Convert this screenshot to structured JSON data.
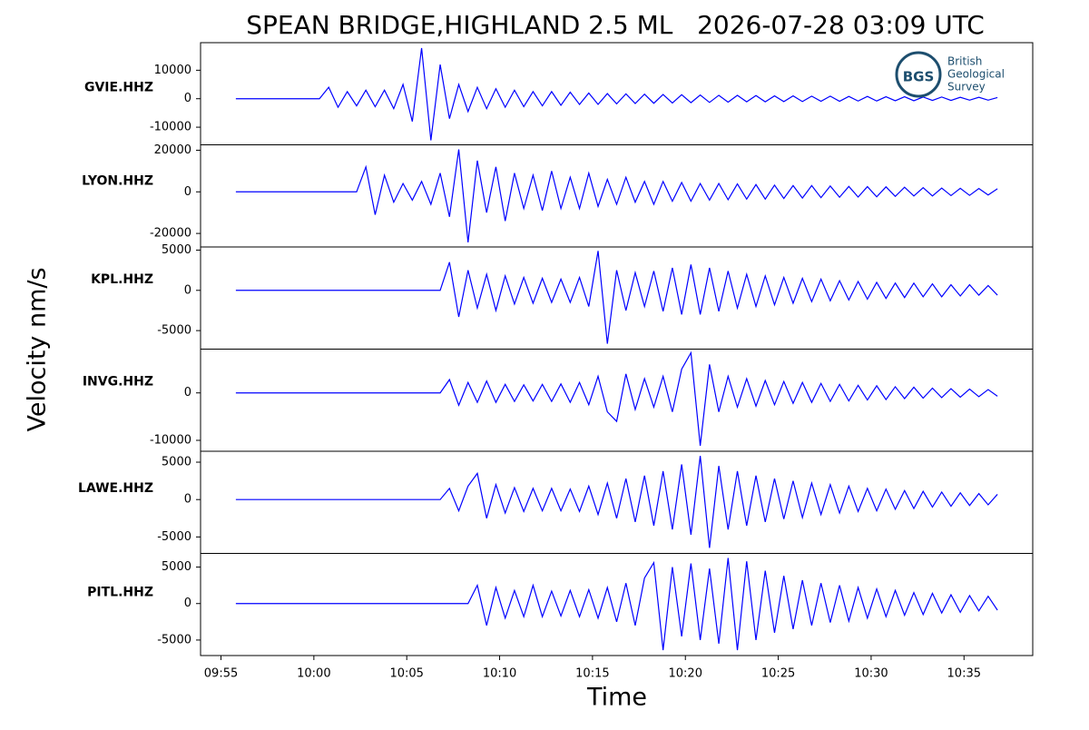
{
  "chart_data": {
    "type": "line",
    "title": "SPEAN BRIDGE,HIGHLAND 2.5 ML   2026-07-28 03:09 UTC",
    "xlabel": "Time",
    "ylabel": "Velocity nm/s",
    "logo": {
      "abbr": "BGS",
      "lines": [
        "British",
        "Geological",
        "Survey"
      ]
    },
    "xlim": [
      593.9,
      638.7
    ],
    "xticks": [
      {
        "value": 595,
        "label": "09:55"
      },
      {
        "value": 600,
        "label": "10:00"
      },
      {
        "value": 605,
        "label": "10:05"
      },
      {
        "value": 610,
        "label": "10:10"
      },
      {
        "value": 615,
        "label": "10:15"
      },
      {
        "value": 620,
        "label": "10:20"
      },
      {
        "value": 625,
        "label": "10:25"
      },
      {
        "value": 630,
        "label": "10:30"
      },
      {
        "value": 635,
        "label": "10:35"
      }
    ],
    "x": [
      595.8,
      596.3,
      596.8,
      597.3,
      597.8,
      598.3,
      598.8,
      599.3,
      599.8,
      600.3,
      600.8,
      601.3,
      601.8,
      602.3,
      602.8,
      603.3,
      603.8,
      604.3,
      604.8,
      605.3,
      605.8,
      606.3,
      606.8,
      607.3,
      607.8,
      608.3,
      608.8,
      609.3,
      609.8,
      610.3,
      610.8,
      611.3,
      611.8,
      612.3,
      612.8,
      613.3,
      613.8,
      614.3,
      614.8,
      615.3,
      615.8,
      616.3,
      616.8,
      617.3,
      617.8,
      618.3,
      618.8,
      619.3,
      619.8,
      620.3,
      620.8,
      621.3,
      621.8,
      622.3,
      622.8,
      623.3,
      623.8,
      624.3,
      624.8,
      625.3,
      625.8,
      626.3,
      626.8,
      627.3,
      627.8,
      628.3,
      628.8,
      629.3,
      629.8,
      630.3,
      630.8,
      631.3,
      631.8,
      632.3,
      632.8,
      633.3,
      633.8,
      634.3,
      634.8,
      635.3,
      635.8,
      636.3,
      636.8
    ],
    "series": [
      {
        "name": "GVIE.HHZ",
        "color": "#0000ff",
        "ylim": [
          -16190,
          19680
        ],
        "yticks": [
          -10000,
          0,
          10000
        ],
        "values": [
          0,
          0,
          0,
          0,
          0,
          0,
          0,
          0,
          0,
          0,
          4000,
          -3000,
          2500,
          -2500,
          3000,
          -2800,
          3000,
          -3500,
          5000,
          -8000,
          17800,
          -14600,
          12000,
          -7000,
          5000,
          -4500,
          4000,
          -3500,
          3500,
          -3000,
          3000,
          -2800,
          2500,
          -2500,
          2500,
          -2300,
          2300,
          -2000,
          2000,
          -2000,
          1800,
          -1800,
          1700,
          -1700,
          1600,
          -1600,
          1500,
          -1500,
          1400,
          -1400,
          1300,
          -1300,
          1200,
          -1200,
          1200,
          -1100,
          1100,
          -1100,
          1000,
          -1000,
          1000,
          -1000,
          900,
          -900,
          900,
          -900,
          800,
          -800,
          800,
          -800,
          700,
          -700,
          700,
          -700,
          600,
          -600,
          600,
          -600,
          500,
          -500,
          500,
          -500,
          400
        ]
      },
      {
        "name": "LYON.HHZ",
        "color": "#0000ff",
        "ylim": [
          -26500,
          22600
        ],
        "yticks": [
          -20000,
          0,
          20000
        ],
        "values": [
          0,
          0,
          0,
          0,
          0,
          0,
          0,
          0,
          0,
          0,
          0,
          0,
          0,
          0,
          12000,
          -11000,
          8000,
          -5000,
          4000,
          -4000,
          5000,
          -6000,
          9000,
          -12000,
          20400,
          -24300,
          15000,
          -10000,
          12000,
          -14000,
          9000,
          -8000,
          8000,
          -9000,
          10000,
          -8000,
          7000,
          -8000,
          9000,
          -7000,
          6000,
          -6000,
          7000,
          -5000,
          5000,
          -6000,
          5000,
          -4500,
          4500,
          -4500,
          4000,
          -4000,
          4000,
          -3800,
          3800,
          -3500,
          3500,
          -3500,
          3200,
          -3200,
          3000,
          -3000,
          3000,
          -2800,
          2800,
          -2600,
          2600,
          -2500,
          2500,
          -2400,
          2400,
          -2200,
          2200,
          -2000,
          2000,
          -2000,
          1800,
          -1800,
          1700,
          -1700,
          1600,
          -1500,
          1500
        ]
      },
      {
        "name": "KPL.HHZ",
        "color": "#0000ff",
        "ylim": [
          -7300,
          5390
        ],
        "yticks": [
          -5000,
          0,
          5000
        ],
        "values": [
          0,
          0,
          0,
          0,
          0,
          0,
          0,
          0,
          0,
          0,
          0,
          0,
          0,
          0,
          0,
          0,
          0,
          0,
          0,
          0,
          0,
          0,
          0,
          3500,
          -3300,
          2500,
          -2200,
          2000,
          -2500,
          1800,
          -1700,
          1600,
          -1600,
          1500,
          -1500,
          1400,
          -1500,
          1600,
          -2000,
          4900,
          -6630,
          2500,
          -2500,
          2200,
          -2000,
          2400,
          -2600,
          2800,
          -3000,
          3200,
          -3000,
          2800,
          -2600,
          2400,
          -2200,
          2000,
          -2000,
          1800,
          -1800,
          1600,
          -1600,
          1500,
          -1400,
          1400,
          -1300,
          1200,
          -1200,
          1100,
          -1100,
          1000,
          -1000,
          900,
          -900,
          900,
          -800,
          800,
          -800,
          700,
          -700,
          700,
          -600,
          600,
          -600
        ]
      },
      {
        "name": "INVG.HHZ",
        "color": "#0000ff",
        "ylim": [
          -12300,
          9230
        ],
        "yticks": [
          -10000,
          0
        ],
        "values": [
          0,
          0,
          0,
          0,
          0,
          0,
          0,
          0,
          0,
          0,
          0,
          0,
          0,
          0,
          0,
          0,
          0,
          0,
          0,
          0,
          0,
          0,
          0,
          2800,
          -2600,
          2200,
          -2000,
          2500,
          -2000,
          1800,
          -1800,
          1700,
          -1700,
          1800,
          -1800,
          1900,
          -2000,
          2200,
          -2500,
          3500,
          -4000,
          -6000,
          4000,
          -3500,
          3000,
          -3000,
          3500,
          -4000,
          5000,
          8460,
          -11150,
          6000,
          -4000,
          3500,
          -3000,
          3000,
          -2800,
          2600,
          -2500,
          2400,
          -2200,
          2200,
          -2000,
          2000,
          -1800,
          1800,
          -1700,
          1600,
          -1500,
          1500,
          -1400,
          1300,
          -1200,
          1200,
          -1100,
          1000,
          -1000,
          900,
          -900,
          800,
          -800,
          700,
          -700
        ]
      },
      {
        "name": "LAWE.HHZ",
        "color": "#0000ff",
        "ylim": [
          -7200,
          6460
        ],
        "yticks": [
          -5000,
          0,
          5000
        ],
        "values": [
          0,
          0,
          0,
          0,
          0,
          0,
          0,
          0,
          0,
          0,
          0,
          0,
          0,
          0,
          0,
          0,
          0,
          0,
          0,
          0,
          0,
          0,
          0,
          1500,
          -1500,
          1800,
          3500,
          -2500,
          2000,
          -1800,
          1600,
          -1600,
          1500,
          -1500,
          1500,
          -1500,
          1400,
          -1600,
          1800,
          -2000,
          2200,
          -2500,
          2800,
          -3000,
          3200,
          -3500,
          3800,
          -4000,
          4700,
          -4700,
          5850,
          -6460,
          4500,
          -4000,
          3800,
          -3500,
          3200,
          -3000,
          2800,
          -2600,
          2500,
          -2400,
          2200,
          -2000,
          2000,
          -1800,
          1800,
          -1600,
          1500,
          -1500,
          1400,
          -1300,
          1200,
          -1200,
          1100,
          -1000,
          1000,
          -900,
          900,
          -800,
          800,
          -700,
          700
        ]
      },
      {
        "name": "PITL.HHZ",
        "color": "#0000ff",
        "ylim": [
          -7125,
          6875
        ],
        "yticks": [
          -5000,
          0,
          5000
        ],
        "values": [
          0,
          0,
          0,
          0,
          0,
          0,
          0,
          0,
          0,
          0,
          0,
          0,
          0,
          0,
          0,
          0,
          0,
          0,
          0,
          0,
          0,
          0,
          0,
          0,
          0,
          0,
          2500,
          -3000,
          2200,
          -2000,
          1800,
          -1800,
          2500,
          -1800,
          1700,
          -1700,
          1800,
          -1800,
          1900,
          -2000,
          2200,
          -2500,
          2800,
          -3000,
          3500,
          5600,
          -6380,
          5000,
          -4500,
          5500,
          -5000,
          4800,
          -5500,
          6250,
          -6380,
          5800,
          -5000,
          4500,
          -4000,
          3800,
          -3500,
          3200,
          -3000,
          2800,
          -2600,
          2500,
          -2400,
          2200,
          -2000,
          2000,
          -1800,
          1800,
          -1600,
          1500,
          -1500,
          1400,
          -1300,
          1200,
          -1200,
          1100,
          -1000,
          1000,
          -900
        ]
      }
    ]
  }
}
